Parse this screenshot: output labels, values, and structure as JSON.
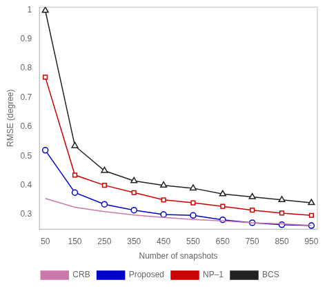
{
  "chart_data": {
    "type": "line",
    "xlabel": "Number of snapshots",
    "ylabel": "RMSE (degree)",
    "x": [
      50,
      150,
      250,
      350,
      450,
      550,
      650,
      750,
      850,
      950
    ],
    "series": [
      {
        "name": "CRB",
        "color": "#CC77AA",
        "values": [
          0.355,
          0.325,
          0.31,
          0.298,
          0.29,
          0.283,
          0.278,
          0.272,
          0.268,
          0.263
        ]
      },
      {
        "name": "Proposed",
        "color": "#0000CC",
        "marker": "circle",
        "values": [
          0.52,
          0.375,
          0.335,
          0.315,
          0.3,
          0.297,
          0.282,
          0.272,
          0.265,
          0.262
        ]
      },
      {
        "name": "NP–1",
        "color": "#CC0000",
        "marker": "square",
        "values": [
          0.77,
          0.435,
          0.4,
          0.375,
          0.35,
          0.34,
          0.328,
          0.315,
          0.305,
          0.297
        ]
      },
      {
        "name": "BCS",
        "color": "#222222",
        "marker": "triangle",
        "values": [
          0.998,
          0.535,
          0.45,
          0.415,
          0.4,
          0.39,
          0.37,
          0.36,
          0.35,
          0.34
        ]
      }
    ],
    "xlim": [
      30,
      970
    ],
    "ylim": [
      0.25,
      1.01
    ],
    "xticks": [
      50,
      150,
      250,
      350,
      450,
      550,
      650,
      750,
      850,
      950
    ],
    "yticks": [
      0.3,
      0.4,
      0.5,
      0.6,
      0.7,
      0.8,
      0.9,
      1.0
    ],
    "grid": false,
    "legend": "bottom"
  }
}
